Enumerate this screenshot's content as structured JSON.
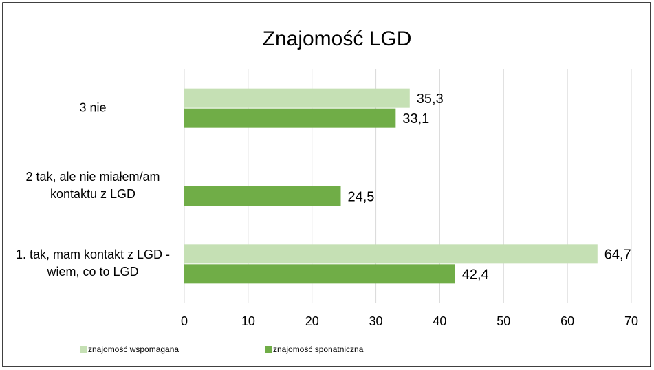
{
  "chart_data": {
    "type": "bar",
    "orientation": "horizontal",
    "title": "Znajomość LGD",
    "categories": [
      "3 nie",
      "2 tak, ale nie miałem/am kontaktu z LGD",
      "1. tak, mam kontakt z LGD - wiem, co to LGD"
    ],
    "series": [
      {
        "name": "znajomość wspomagana",
        "color": "#c5e0b4",
        "values": [
          35.3,
          null,
          64.7
        ],
        "value_labels": [
          "35,3",
          null,
          "64,7"
        ]
      },
      {
        "name": "znajomość sponatniczna",
        "color": "#70ad47",
        "values": [
          33.1,
          24.5,
          42.4
        ],
        "value_labels": [
          "33,1",
          "24,5",
          "42,4"
        ]
      }
    ],
    "xlim": [
      0,
      70
    ],
    "xticks": [
      0,
      10,
      20,
      30,
      40,
      50,
      60,
      70
    ],
    "grid": true,
    "legend": "bottom"
  }
}
